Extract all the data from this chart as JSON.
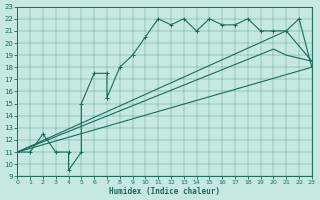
{
  "xlabel": "Humidex (Indice chaleur)",
  "xlim": [
    0,
    23
  ],
  "ylim": [
    9,
    23
  ],
  "xticks": [
    0,
    1,
    2,
    3,
    4,
    5,
    6,
    7,
    8,
    9,
    10,
    11,
    12,
    13,
    14,
    15,
    16,
    17,
    18,
    19,
    20,
    21,
    22,
    23
  ],
  "yticks": [
    9,
    10,
    11,
    12,
    13,
    14,
    15,
    16,
    17,
    18,
    19,
    20,
    21,
    22,
    23
  ],
  "bg_color": "#c5e8e3",
  "line_color": "#1a6b5a",
  "line1_x": [
    0,
    1,
    2,
    3,
    4,
    4,
    5,
    5,
    6,
    7,
    7,
    8,
    9,
    10,
    11,
    12,
    13,
    14,
    15,
    16,
    17,
    18,
    19,
    20,
    21,
    22,
    23
  ],
  "line1_y": [
    11,
    11,
    12.5,
    11,
    11,
    9.5,
    11,
    15,
    17.5,
    17.5,
    15.5,
    18,
    19,
    20.5,
    22,
    21.5,
    22,
    21,
    22,
    21.5,
    21.5,
    22,
    21,
    21,
    21,
    22,
    18
  ],
  "line2_x": [
    0,
    23
  ],
  "line2_y": [
    11,
    18
  ],
  "line3_x": [
    0,
    20,
    21,
    23
  ],
  "line3_y": [
    11,
    19.5,
    19,
    18.5
  ],
  "line4_x": [
    0,
    21,
    23
  ],
  "line4_y": [
    11,
    21,
    18.5
  ]
}
